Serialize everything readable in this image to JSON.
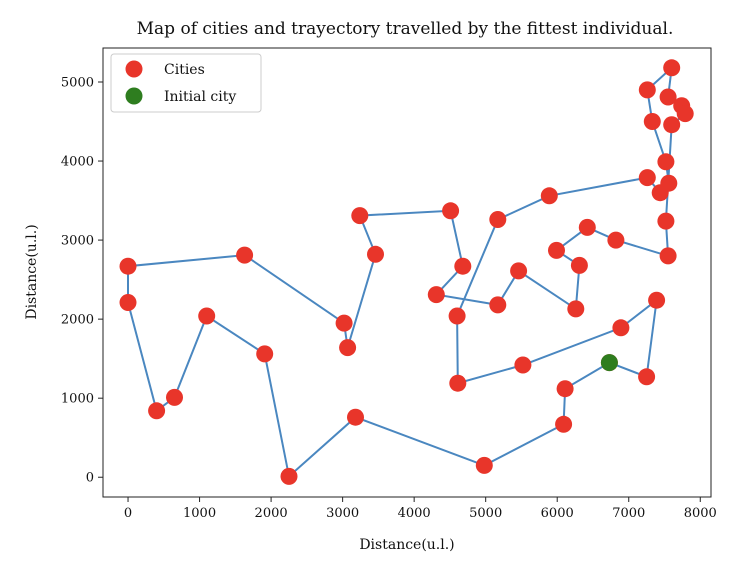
{
  "chart_data": {
    "type": "scatter",
    "title": "Map of cities and trayectory travelled by the fittest individual.",
    "xlabel": "Distance(u.l.)",
    "ylabel": "Distance(u.l.)",
    "xlim": [
      -350,
      8150
    ],
    "ylim": [
      -250,
      5430
    ],
    "xticks": [
      0,
      1000,
      2000,
      3000,
      4000,
      5000,
      6000,
      7000,
      8000
    ],
    "yticks": [
      0,
      1000,
      2000,
      3000,
      4000,
      5000
    ],
    "grid": false,
    "legend_position": "top-left",
    "colors": {
      "cities": "#e8352a",
      "initial_city": "#2e7d1f",
      "route": "#4a87c0"
    },
    "series": [
      {
        "name": "Cities",
        "marker_color": "#e8352a",
        "points": [
          [
            6730,
            1450
          ],
          [
            7250,
            1270
          ],
          [
            7390,
            2240
          ],
          [
            6890,
            1890
          ],
          [
            5520,
            1420
          ],
          [
            4610,
            1190
          ],
          [
            4600,
            2040
          ],
          [
            5170,
            3260
          ],
          [
            5890,
            3560
          ],
          [
            7260,
            3790
          ],
          [
            7440,
            3600
          ],
          [
            7560,
            3720
          ],
          [
            7520,
            3990
          ],
          [
            7330,
            4500
          ],
          [
            7260,
            4900
          ],
          [
            7600,
            5180
          ],
          [
            7550,
            4810
          ],
          [
            7740,
            4700
          ],
          [
            7790,
            4600
          ],
          [
            7600,
            4460
          ],
          [
            7520,
            3240
          ],
          [
            7550,
            2800
          ],
          [
            6820,
            3000
          ],
          [
            6420,
            3160
          ],
          [
            5990,
            2870
          ],
          [
            6310,
            2680
          ],
          [
            6260,
            2130
          ],
          [
            5460,
            2610
          ],
          [
            5170,
            2180
          ],
          [
            4310,
            2310
          ],
          [
            4680,
            2670
          ],
          [
            4510,
            3370
          ],
          [
            3240,
            3310
          ],
          [
            3460,
            2820
          ],
          [
            3070,
            1640
          ],
          [
            3020,
            1950
          ],
          [
            1630,
            2810
          ],
          [
            0,
            2670
          ],
          [
            0,
            2210
          ],
          [
            400,
            840
          ],
          [
            650,
            1010
          ],
          [
            1100,
            2040
          ],
          [
            1910,
            1560
          ],
          [
            2250,
            10
          ],
          [
            3180,
            760
          ],
          [
            4980,
            150
          ],
          [
            6090,
            670
          ],
          [
            6110,
            1120
          ]
        ]
      },
      {
        "name": "Initial city",
        "marker_color": "#2e7d1f",
        "points": [
          [
            6730,
            1450
          ]
        ]
      }
    ],
    "route": [
      [
        6730,
        1450
      ],
      [
        7250,
        1270
      ],
      [
        7390,
        2240
      ],
      [
        6890,
        1890
      ],
      [
        5520,
        1420
      ],
      [
        4610,
        1190
      ],
      [
        4600,
        2040
      ],
      [
        5170,
        3260
      ],
      [
        5890,
        3560
      ],
      [
        7260,
        3790
      ],
      [
        7440,
        3600
      ],
      [
        7560,
        3720
      ],
      [
        7520,
        3990
      ],
      [
        7330,
        4500
      ],
      [
        7260,
        4900
      ],
      [
        7600,
        5180
      ],
      [
        7550,
        4810
      ],
      [
        7740,
        4700
      ],
      [
        7790,
        4600
      ],
      [
        7600,
        4460
      ],
      [
        7520,
        3240
      ],
      [
        7550,
        2800
      ],
      [
        6820,
        3000
      ],
      [
        6420,
        3160
      ],
      [
        5990,
        2870
      ],
      [
        6310,
        2680
      ],
      [
        6260,
        2130
      ],
      [
        5460,
        2610
      ],
      [
        5170,
        2180
      ],
      [
        4310,
        2310
      ],
      [
        4680,
        2670
      ],
      [
        4510,
        3370
      ],
      [
        3240,
        3310
      ],
      [
        3460,
        2820
      ],
      [
        3070,
        1640
      ],
      [
        3020,
        1950
      ],
      [
        1630,
        2810
      ],
      [
        0,
        2670
      ],
      [
        0,
        2210
      ],
      [
        400,
        840
      ],
      [
        650,
        1010
      ],
      [
        1100,
        2040
      ],
      [
        1910,
        1560
      ],
      [
        2250,
        10
      ],
      [
        3180,
        760
      ],
      [
        4980,
        150
      ],
      [
        6090,
        670
      ],
      [
        6110,
        1120
      ],
      [
        6730,
        1450
      ]
    ]
  }
}
